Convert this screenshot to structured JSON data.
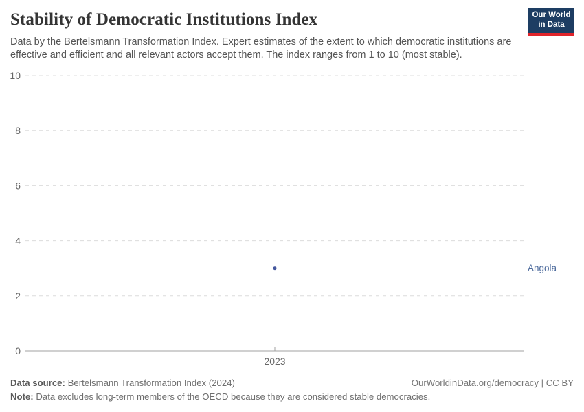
{
  "header": {
    "title": "Stability of Democratic Institutions Index",
    "subtitle": "Data by the Bertelsmann Transformation Index. Expert estimates of the extent to which democratic institutions are effective and efficient and all relevant actors accept them. The index ranges from 1 to 10 (most stable).",
    "logo_line1": "Our World",
    "logo_line2": "in Data"
  },
  "chart_data": {
    "type": "scatter",
    "title": "Stability of Democratic Institutions Index",
    "x": [
      2023
    ],
    "x_tick_labels": [
      "2023"
    ],
    "y_ticks": [
      0,
      2,
      4,
      6,
      8,
      10
    ],
    "ylim": [
      0,
      10
    ],
    "grid": true,
    "legend_position": "right-entity-label",
    "series": [
      {
        "name": "Angola",
        "color": "#4c6a9c",
        "points": [
          {
            "x": 2023,
            "y": 3
          }
        ]
      }
    ]
  },
  "footer": {
    "source_label": "Data source:",
    "source_text": "Bertelsmann Transformation Index (2024)",
    "note_label": "Note:",
    "note_text": "Data excludes long-term members of the OECD because they are considered stable democracies.",
    "credit": "OurWorldinData.org/democracy | CC BY"
  },
  "colors": {
    "accent_blue": "#4c6a9c",
    "point_blue": "#45589e",
    "logo_bg": "#1d3d63",
    "logo_bar": "#e0242b",
    "grid": "#dcdcdc",
    "axis": "#a1a1a1",
    "tick_text": "#666666"
  }
}
